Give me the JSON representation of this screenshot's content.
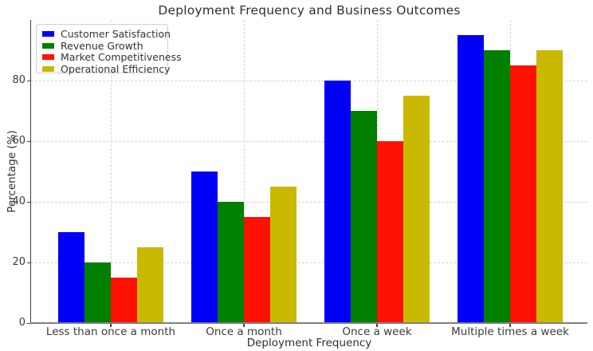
{
  "chart_data": {
    "type": "bar",
    "title": "Deployment Frequency and Business Outcomes",
    "xlabel": "Deployment Frequency",
    "ylabel": "Percentage (%)",
    "categories": [
      "Less than once a month",
      "Once a month",
      "Once a week",
      "Multiple times a week"
    ],
    "series": [
      {
        "name": "Customer Satisfaction",
        "color": "#0000f8",
        "values": [
          30,
          50,
          80,
          95
        ]
      },
      {
        "name": "Revenue Growth",
        "color": "#007f00",
        "values": [
          20,
          40,
          70,
          90
        ]
      },
      {
        "name": "Market Competitiveness",
        "color": "#fe1100",
        "values": [
          15,
          35,
          60,
          85
        ]
      },
      {
        "name": "Operational Efficiency",
        "color": "#c9b900",
        "values": [
          25,
          45,
          75,
          90
        ]
      }
    ],
    "ylim": [
      0,
      100
    ],
    "yticks": [
      0,
      20,
      40,
      60,
      80
    ],
    "grid": true,
    "grid_style": "dashed",
    "legend_position": "upper-left",
    "background_color": "#ffffff"
  }
}
